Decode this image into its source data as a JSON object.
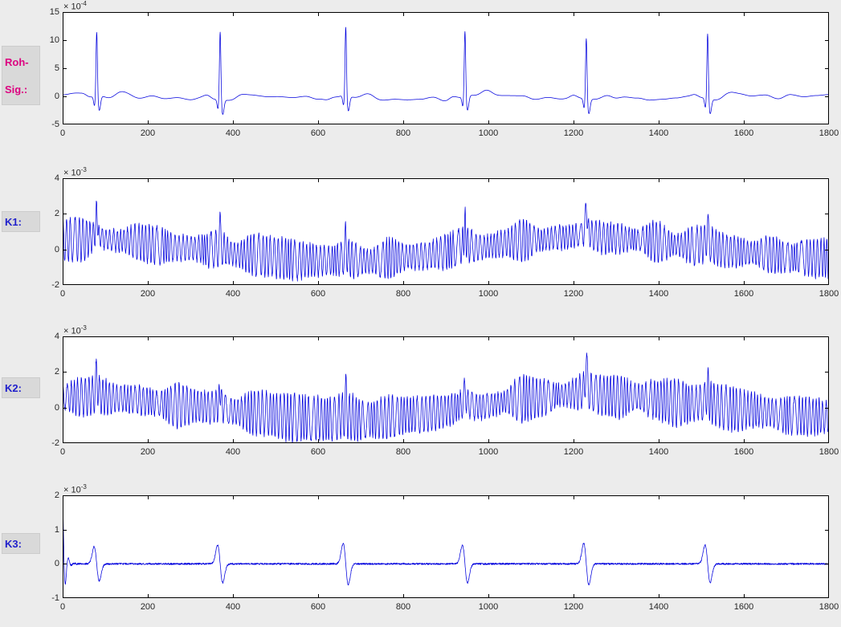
{
  "figure": {
    "background": "#ececec",
    "axes_background": "#ffffff",
    "trace_color": "#0000dd",
    "tick_label_color": "#262626"
  },
  "row_labels": [
    {
      "line1": "Roh-",
      "line2": "Sig.:",
      "color": "#dd0080"
    },
    {
      "line1": "K1:",
      "line2": "",
      "color": "#2020cc"
    },
    {
      "line1": "K2:",
      "line2": "",
      "color": "#2020cc"
    },
    {
      "line1": "K3:",
      "line2": "",
      "color": "#2020cc"
    }
  ],
  "chart_data": [
    {
      "type": "line",
      "name": "roh_signal",
      "title": "",
      "xlabel": "",
      "ylabel": "",
      "exponent_label": "× 10",
      "exponent_power": "-4",
      "xlim": [
        0,
        1800
      ],
      "xticks": [
        0,
        200,
        400,
        600,
        800,
        1000,
        1200,
        1400,
        1600,
        1800
      ],
      "ylim": [
        -5,
        15
      ],
      "yticks": [
        -5,
        0,
        5,
        10,
        15
      ],
      "line_color": "#0000dd",
      "signal": {
        "kind": "ecg",
        "seed": 11,
        "baseline": -0.15,
        "noise_amp": 0.5,
        "beat_times": [
          80,
          370,
          665,
          945,
          1230,
          1515
        ],
        "r_amplitudes": [
          11.8,
          12.5,
          12.7,
          12.0,
          11.2,
          12.0
        ],
        "p_amp": 0.45,
        "q_depth": -1.7,
        "s_depth": -2.6,
        "t_amp": 1.0
      }
    },
    {
      "type": "line",
      "name": "k1",
      "title": "",
      "xlabel": "",
      "ylabel": "",
      "exponent_label": "× 10",
      "exponent_power": "-3",
      "xlim": [
        0,
        1800
      ],
      "xticks": [
        0,
        200,
        400,
        600,
        800,
        1000,
        1200,
        1400,
        1600,
        1800
      ],
      "ylim": [
        -2,
        4
      ],
      "yticks": [
        -2,
        0,
        2,
        4
      ],
      "line_color": "#0000dd",
      "signal": {
        "kind": "noisy-band",
        "seed": 22,
        "carrier_period": 8.5,
        "osc_amp": 0.95,
        "osc_amp_jitter": 0.4,
        "noise_amp": 0.08,
        "drift_points": [
          [
            0,
            0.55
          ],
          [
            130,
            0.5
          ],
          [
            280,
            0.1
          ],
          [
            430,
            -0.3
          ],
          [
            580,
            -0.62
          ],
          [
            700,
            -0.68
          ],
          [
            830,
            -0.38
          ],
          [
            960,
            0.05
          ],
          [
            1090,
            0.5
          ],
          [
            1210,
            0.72
          ],
          [
            1330,
            0.58
          ],
          [
            1470,
            0.2
          ],
          [
            1610,
            -0.18
          ],
          [
            1730,
            -0.45
          ],
          [
            1800,
            -0.52
          ]
        ],
        "beat_times": [
          80,
          370,
          665,
          945,
          1230,
          1515
        ],
        "beat_spike_amps": [
          1.5,
          0.95,
          1.0,
          1.1,
          1.7,
          0.95
        ]
      }
    },
    {
      "type": "line",
      "name": "k2",
      "title": "",
      "xlabel": "",
      "ylabel": "",
      "exponent_label": "× 10",
      "exponent_power": "-3",
      "xlim": [
        0,
        1800
      ],
      "xticks": [
        0,
        200,
        400,
        600,
        800,
        1000,
        1200,
        1400,
        1600,
        1800
      ],
      "ylim": [
        -2,
        4
      ],
      "yticks": [
        -2,
        0,
        2,
        4
      ],
      "line_color": "#0000dd",
      "signal": {
        "kind": "noisy-band",
        "seed": 33,
        "carrier_period": 8.5,
        "osc_amp": 0.95,
        "osc_amp_jitter": 0.4,
        "noise_amp": 0.08,
        "drift_points": [
          [
            0,
            0.6
          ],
          [
            130,
            0.5
          ],
          [
            280,
            0.12
          ],
          [
            430,
            -0.28
          ],
          [
            580,
            -0.6
          ],
          [
            700,
            -0.7
          ],
          [
            830,
            -0.4
          ],
          [
            960,
            0.0
          ],
          [
            1090,
            0.52
          ],
          [
            1210,
            0.75
          ],
          [
            1330,
            0.6
          ],
          [
            1470,
            0.22
          ],
          [
            1610,
            -0.15
          ],
          [
            1730,
            -0.48
          ],
          [
            1800,
            -0.55
          ]
        ],
        "beat_times": [
          80,
          370,
          665,
          945,
          1230,
          1515
        ],
        "beat_spike_amps": [
          1.2,
          0.95,
          1.05,
          1.0,
          1.75,
          0.9
        ]
      }
    },
    {
      "type": "line",
      "name": "k3",
      "title": "",
      "xlabel": "",
      "ylabel": "",
      "exponent_label": "× 10",
      "exponent_power": "-3",
      "xlim": [
        0,
        1800
      ],
      "xticks": [
        0,
        200,
        400,
        600,
        800,
        1000,
        1200,
        1400,
        1600,
        1800
      ],
      "ylim": [
        -1,
        2
      ],
      "yticks": [
        -1,
        0,
        1,
        2
      ],
      "line_color": "#0000dd",
      "signal": {
        "kind": "wavelets",
        "seed": 44,
        "noise_amp": 0.025,
        "beat_times": [
          80,
          370,
          665,
          945,
          1230,
          1515
        ],
        "wavelet_amps": [
          0.5,
          0.55,
          0.6,
          0.55,
          0.6,
          0.55
        ],
        "wavelet_width": 6,
        "onset_amp": 1.9,
        "onset_decay": 5.5,
        "onset_freq": 0.45
      }
    }
  ]
}
